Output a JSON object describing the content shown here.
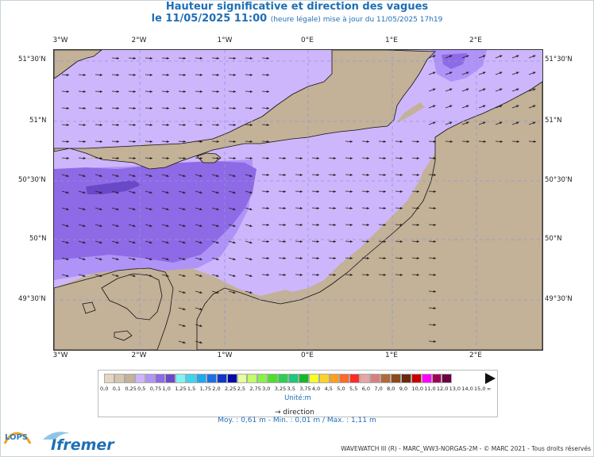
{
  "title": {
    "line1": "Hauteur significative et direction des vagues",
    "date": "le 11/05/2025 11:00",
    "note": "(heure légale) mise à jour du 11/05/2025 17h19"
  },
  "map": {
    "lon_labels": [
      "3°W",
      "2°W",
      "1°W",
      "0°E",
      "1°E",
      "2°E"
    ],
    "lat_labels": [
      "51°30'N",
      "51°N",
      "50°30'N",
      "50°N",
      "49°30'N"
    ],
    "colors": {
      "land": "#c3b198",
      "sea_low": "#cdb6fb",
      "sea_mid": "#b093f7",
      "sea_high": "#8e6ae6",
      "sea_top": "#6a49c8",
      "grid": "#8e98d8",
      "arrow": "#222222"
    }
  },
  "legend": {
    "values": [
      "0,0",
      "0,1",
      "0,25",
      "0,5",
      "0,75",
      "1,0",
      "1,25",
      "1,5",
      "1,75",
      "2,0",
      "2,25",
      "2,5",
      "2,75",
      "3,0",
      "3,25",
      "3,5",
      "3,75",
      "4,0",
      "4,5",
      "5,0",
      "5,5",
      "6,0",
      "7,0",
      "8,0",
      "9,0",
      "10,0",
      "11,0",
      "12,0",
      "13,0",
      "14,0",
      "15,0",
      "∞"
    ],
    "colors": [
      "#e6d6c0",
      "#d7c6ae",
      "#c3b198",
      "#cdb6fb",
      "#b093f7",
      "#8e6ae6",
      "#6a49c8",
      "#7ef4f4",
      "#38d6f2",
      "#1ea9ee",
      "#1e6fe6",
      "#1036cc",
      "#000aa6",
      "#e6ff9a",
      "#c0ff6a",
      "#88f24a",
      "#4ce02a",
      "#2ad050",
      "#1ec878",
      "#1ab62a",
      "#f6ff2a",
      "#ffd22a",
      "#ffa01e",
      "#ff6a2a",
      "#ff2a2a",
      "#e6a6a6",
      "#d88080",
      "#b06a3a",
      "#8a4a1a",
      "#6a2a0a",
      "#c80000",
      "#ff00ff",
      "#a0005a",
      "#6a0040"
    ],
    "unit": "Unité:m",
    "direction_label": "direction"
  },
  "stats": "Moy. : 0,61 m   -   Min. : 0,01 m / Max. : 1,11 m",
  "credit": "WAVEWATCH III (R) - MARC_WW3-NORGAS-2M - © MARC 2021 - Tous droits réservés",
  "logos": {
    "lops": "LOPS",
    "ifremer": "Ifremer"
  }
}
